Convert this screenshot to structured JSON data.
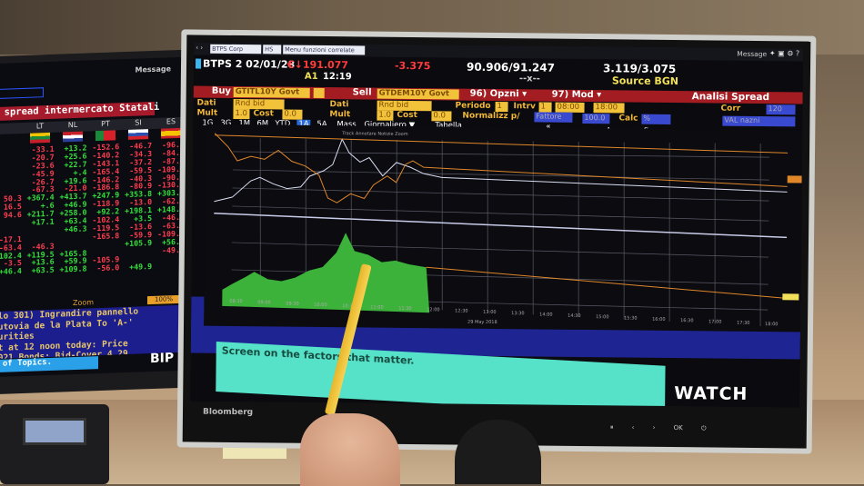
{
  "left_monitor": {
    "message": "Message",
    "title": "e spread intermercato Statali",
    "columns": [
      "LT",
      "NL",
      "PT",
      "SI",
      "ES"
    ],
    "rows": [
      [
        "",
        "-33.1",
        "+13.2",
        "-152.6",
        "-46.7",
        "-96.6"
      ],
      [
        "",
        "-20.7",
        "+25.6",
        "-140.2",
        "-34.3",
        "-84.2"
      ],
      [
        "",
        "-23.6",
        "+22.7",
        "-143.1",
        "-37.2",
        "-87.1"
      ],
      [
        "",
        "-45.9",
        "+.4",
        "-165.4",
        "-59.5",
        "-109.4"
      ],
      [
        "",
        "-26.7",
        "+19.6",
        "-146.2",
        "-40.3",
        "-90.2"
      ],
      [
        "",
        "-67.3",
        "-21.0",
        "-186.8",
        "-80.9",
        "-130.8"
      ],
      [
        "50.3",
        "+367.4",
        "+413.7",
        "+247.9",
        "+353.8",
        "+303.9"
      ],
      [
        "16.5",
        "+.6",
        "+46.9",
        "-118.9",
        "-13.0",
        "-62.9"
      ],
      [
        "94.6",
        "+211.7",
        "+258.0",
        "+92.2",
        "+198.1",
        "+148.2"
      ],
      [
        "",
        "+17.1",
        "+63.4",
        "-102.4",
        "+3.5",
        "-46.4"
      ],
      [
        "",
        "",
        "+46.3",
        "-119.5",
        "-13.6",
        "-63.5"
      ],
      [
        "-17.1",
        "",
        "",
        "-165.8",
        "-59.9",
        "-109.8"
      ],
      [
        "-63.4",
        "-46.3",
        "",
        "",
        "+105.9",
        "+56.0"
      ],
      [
        "+102.4",
        "+119.5",
        "+165.8",
        "",
        "",
        "-49.9"
      ],
      [
        "-3.5",
        "+13.6",
        "+59.9",
        "-105.9",
        "",
        ""
      ],
      [
        "+46.4",
        "+63.5",
        "+109.8",
        "-56.0",
        "+49.9",
        ""
      ]
    ],
    "zoom_label": "Zoom",
    "zoom_value": "100%",
    "news": [
      "llo  301) Ingrandire pannello",
      "Autovia de la Plata To 'A-'",
      "curities",
      "rt at 12 noon today: Price",
      "2021 Bonds: Bid-Cover 4.29"
    ],
    "topics": "n of Topics.",
    "bip": "BIP"
  },
  "right_monitor": {
    "brand": "Bloomberg",
    "security_select": "BTPS Corp",
    "hs_select": "HS",
    "menu_select": "Menu funzioni correlate",
    "message": "Message",
    "ticker": "BTPS 2 02/01/28",
    "price": "€↓191.077",
    "change": "-3.375",
    "bid_ask": "90.906/91.247",
    "time_label": "A1",
    "time": "12:19",
    "dashes": "--x--",
    "yields": "3.119/3.075",
    "source": "Source BGN",
    "buy_label": "Buy",
    "buy_value": "GTITL10Y Govt",
    "sell_label": "Sell",
    "sell_value": "GTDEM10Y Govt",
    "opzni": "96) Opzni ▾",
    "mod": "97) Mod ▾",
    "analisi": "Analisi Spread",
    "dati_label": "Dati",
    "dati_value": "Rnd bid",
    "mult_label": "Mult",
    "mult_value": "1.0",
    "cost_label": "Cost",
    "cost_value": "0.0",
    "periodo_label": "Periodo",
    "periodo_value": "1",
    "intrv_label": "Intrv",
    "intrv_value": "1",
    "time_from": "08:00",
    "time_to": "18:00",
    "normalizz_label": "Normalizz p/",
    "fattore": "Fattore",
    "fattore_value": "100.0",
    "calc_label": "Calc",
    "calc_value": "%",
    "corr_label": "Corr",
    "corr_value": "120",
    "val_value": "VAL nazni",
    "ranges": [
      "1G",
      "3G",
      "1M",
      "6M",
      "YTD",
      "1A",
      "5A",
      "Mass"
    ],
    "selected_range": "1A",
    "giornaliero": "Giornaliero ▼",
    "tabella": "Tabella",
    "agg_grafico": "Agg a grafico",
    "chart_tools": "Track  Annotare  Notizie  Zoom",
    "x_ticks": [
      "08:30",
      "09:00",
      "09:30",
      "10:00",
      "10:30",
      "11:00",
      "11:30",
      "12:00",
      "12:30",
      "13:00",
      "13:30",
      "14:00",
      "14:30",
      "15:00",
      "15:30",
      "16:00",
      "16:30",
      "17:00",
      "17:30",
      "18:00"
    ],
    "x_date": "29 May 2018",
    "banner": "Screen on the factors that matter.",
    "watch": "WATCH",
    "colors": {
      "white_series": "#d8dcf0",
      "orange_series": "#e0872a",
      "spread_fill": "#3cb23a",
      "grid": "#5a5a66"
    }
  }
}
